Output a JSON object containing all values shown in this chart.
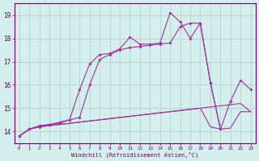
{
  "xlabel": "Windchill (Refroidissement éolien,°C)",
  "x_values": [
    0,
    1,
    2,
    3,
    4,
    5,
    6,
    7,
    8,
    9,
    10,
    11,
    12,
    13,
    14,
    15,
    16,
    17,
    18,
    19,
    20,
    21,
    22,
    23
  ],
  "line1_marked": [
    13.8,
    14.1,
    14.2,
    14.3,
    14.4,
    14.5,
    15.8,
    16.9,
    17.3,
    17.35,
    17.55,
    18.05,
    17.75,
    17.75,
    17.8,
    19.1,
    18.7,
    18.0,
    18.65,
    16.1,
    14.1,
    15.3,
    16.2,
    15.8
  ],
  "line2_marked": [
    13.8,
    14.1,
    14.25,
    14.3,
    14.35,
    14.5,
    14.6,
    16.0,
    17.1,
    17.3,
    17.5,
    17.6,
    17.65,
    17.7,
    17.75,
    17.8,
    18.5,
    18.65,
    18.65,
    16.1,
    14.1,
    null,
    null,
    null
  ],
  "line3_flat": [
    13.8,
    14.1,
    14.2,
    14.25,
    14.3,
    14.35,
    14.4,
    14.45,
    14.5,
    14.55,
    14.6,
    14.65,
    14.7,
    14.75,
    14.8,
    14.85,
    14.9,
    14.95,
    15.0,
    15.05,
    15.1,
    15.15,
    15.2,
    14.85
  ],
  "line4_flat": [
    13.8,
    14.1,
    14.2,
    14.25,
    14.3,
    14.35,
    14.4,
    14.45,
    14.5,
    14.55,
    14.6,
    14.65,
    14.7,
    14.75,
    14.8,
    14.85,
    14.9,
    14.95,
    15.0,
    14.2,
    14.1,
    14.15,
    14.85,
    14.85
  ],
  "line_color": "#993399",
  "bg_color": "#d5eeed",
  "grid_color": "#b8d8d5",
  "axis_color": "#660066",
  "ylim": [
    13.5,
    19.5
  ],
  "xlim": [
    -0.5,
    23.5
  ],
  "yticks": [
    14,
    15,
    16,
    17,
    18,
    19
  ],
  "xticks": [
    0,
    1,
    2,
    3,
    4,
    5,
    6,
    7,
    8,
    9,
    10,
    11,
    12,
    13,
    14,
    15,
    16,
    17,
    18,
    19,
    20,
    21,
    22,
    23
  ]
}
